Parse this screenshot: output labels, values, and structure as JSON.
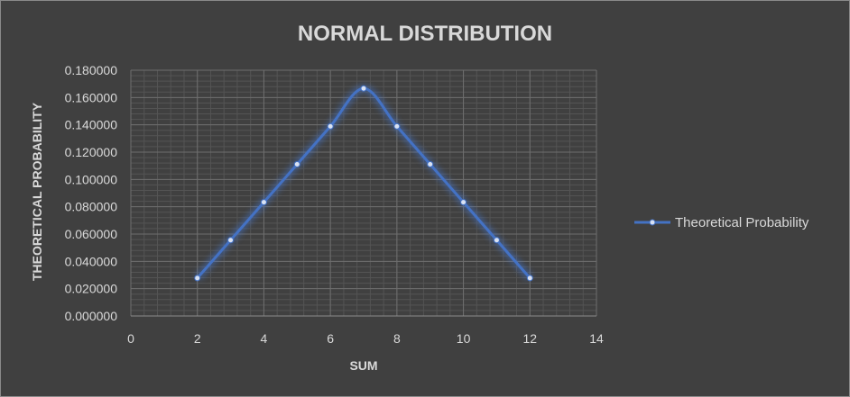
{
  "chart_data": {
    "type": "line",
    "title": "NORMAL DISTRIBUTION",
    "xlabel": "SUM",
    "ylabel": "THEORETICAL PROBABILITY",
    "xlim": [
      0,
      14
    ],
    "ylim": [
      0,
      0.18
    ],
    "x_ticks": [
      "0",
      "2",
      "4",
      "6",
      "8",
      "10",
      "12",
      "14"
    ],
    "y_ticks": [
      "0.000000",
      "0.020000",
      "0.040000",
      "0.060000",
      "0.080000",
      "0.100000",
      "0.120000",
      "0.140000",
      "0.160000",
      "0.180000"
    ],
    "grid": true,
    "smooth": true,
    "legend_position": "right",
    "series": [
      {
        "name": "Theoretical Probability",
        "color": "#4472c4",
        "x": [
          2,
          3,
          4,
          5,
          6,
          7,
          8,
          9,
          10,
          11,
          12
        ],
        "y": [
          0.027778,
          0.055556,
          0.083333,
          0.111111,
          0.138889,
          0.166667,
          0.138889,
          0.111111,
          0.083333,
          0.055556,
          0.027778
        ]
      }
    ]
  }
}
